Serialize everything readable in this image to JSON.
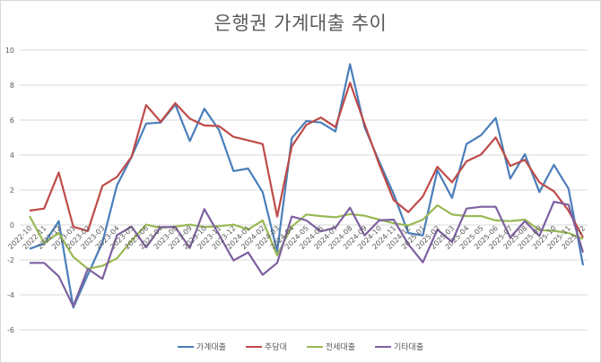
{
  "chart_data": {
    "type": "line",
    "title": "은행권 가계대출 추이",
    "xlabel": "",
    "ylabel": "",
    "ylim": [
      -6,
      10
    ],
    "yticks": [
      10,
      8,
      6,
      4,
      2,
      0,
      -2,
      -4,
      -6
    ],
    "grid": true,
    "legend_position": "bottom",
    "categories": [
      "2022-10",
      "2022-11",
      "2022-12",
      "2023-01",
      "2023-02",
      "2023-03",
      "2023-04",
      "2023-05",
      "2023-06",
      "2023-07",
      "2023-08",
      "2023-09",
      "2023-10",
      "2023-11",
      "2023-12",
      "2024-01",
      "2024-02",
      "2024-03",
      "2024-04",
      "2024-05",
      "2024-06",
      "2024-07",
      "2024-08",
      "2024-09",
      "2024-10",
      "2024-11",
      "2024-12",
      "2025-01",
      "2025-02",
      "2025-03",
      "2025-04",
      "2025-05",
      "2025-06",
      "2025-07",
      "2025-08",
      "2025-09",
      "2025-10",
      "2025-11",
      "2025-12"
    ],
    "series": [
      {
        "name": "가계대출",
        "color": "#4a7ebb",
        "values": [
          -1.37,
          -1.06,
          0.22,
          -4.73,
          -2.85,
          -1.0,
          2.27,
          3.9,
          5.8,
          5.86,
          6.89,
          4.8,
          6.65,
          5.44,
          3.08,
          3.23,
          1.88,
          -1.5,
          4.97,
          5.95,
          5.86,
          5.35,
          9.2,
          5.6,
          3.64,
          1.76,
          -0.46,
          -0.6,
          3.13,
          1.55,
          4.63,
          5.14,
          6.12,
          2.65,
          4.05,
          1.88,
          3.44,
          2.07,
          -2.31
        ]
      },
      {
        "name": "주담대",
        "color": "#be4b48",
        "values": [
          0.82,
          0.94,
          3.0,
          -0.1,
          -0.35,
          2.24,
          2.75,
          3.9,
          6.86,
          5.9,
          6.97,
          6.08,
          5.69,
          5.66,
          5.04,
          4.84,
          4.63,
          0.48,
          4.5,
          5.73,
          6.15,
          5.6,
          8.14,
          5.78,
          3.47,
          1.42,
          0.74,
          1.63,
          3.33,
          2.44,
          3.64,
          4.03,
          5.01,
          3.38,
          3.73,
          2.44,
          1.93,
          0.82,
          -0.72
        ]
      },
      {
        "name": "전세대출",
        "color": "#98b954",
        "values": [
          0.51,
          -1.03,
          -0.46,
          -1.83,
          -2.51,
          -2.34,
          -1.91,
          -0.9,
          0.02,
          -0.17,
          -0.09,
          0.02,
          -0.12,
          -0.07,
          0.02,
          -0.26,
          0.26,
          -1.74,
          -0.09,
          0.6,
          0.51,
          0.44,
          0.62,
          0.53,
          0.31,
          0.1,
          -0.03,
          0.31,
          1.13,
          0.6,
          0.51,
          0.51,
          0.26,
          0.22,
          0.31,
          -0.29,
          -0.34,
          -0.46,
          -0.8
        ]
      },
      {
        "name": "기타대출",
        "color": "#7d60a0",
        "values": [
          -2.17,
          -2.17,
          -2.94,
          -4.65,
          -2.51,
          -3.08,
          -0.58,
          -0.09,
          -1.28,
          -0.12,
          -0.12,
          -1.32,
          0.91,
          -0.55,
          -2.03,
          -1.57,
          -2.85,
          -2.17,
          0.48,
          0.26,
          -0.37,
          -0.15,
          0.99,
          -0.6,
          0.26,
          0.31,
          -1.11,
          -2.14,
          -0.26,
          -0.97,
          0.94,
          1.04,
          1.04,
          -0.72,
          0.22,
          -0.63,
          1.33,
          1.16,
          -1.57
        ]
      }
    ]
  },
  "colors": {
    "grid": "#d9d9d9",
    "axis_text": "#595959",
    "title_text": "#595959"
  }
}
